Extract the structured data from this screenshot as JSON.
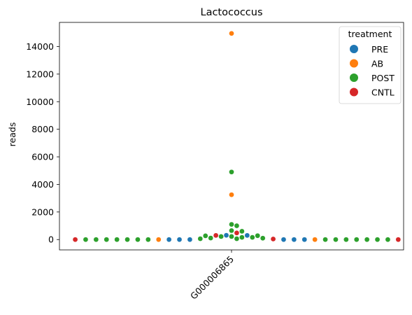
{
  "chart_data": {
    "type": "scatter",
    "title": "Lactococcus",
    "xlabel": "",
    "ylabel": "reads",
    "categories": [
      "G000006865"
    ],
    "ylim": [
      -750,
      15750
    ],
    "yticks": [
      0,
      2000,
      4000,
      6000,
      8000,
      10000,
      12000,
      14000
    ],
    "legend": {
      "title": "treatment",
      "placement": "top-right",
      "entries": [
        {
          "name": "PRE",
          "color": "#1f77b4"
        },
        {
          "name": "AB",
          "color": "#ff7f0e"
        },
        {
          "name": "POST",
          "color": "#2ca02c"
        },
        {
          "name": "CNTL",
          "color": "#d62728"
        }
      ]
    },
    "series": [
      {
        "name": "PRE",
        "color": "#1f77b4",
        "values": [
          0,
          0,
          0,
          0,
          0,
          300,
          0,
          310
        ]
      },
      {
        "name": "AB",
        "color": "#ff7f0e",
        "values": [
          14950,
          3250,
          0,
          0
        ]
      },
      {
        "name": "POST",
        "color": "#2ca02c",
        "values": [
          4900,
          1100,
          1000,
          600,
          650,
          280,
          220,
          160,
          110,
          60,
          0,
          0,
          0,
          0,
          0,
          0,
          0,
          0,
          0,
          0,
          0,
          0,
          0,
          0,
          60,
          100,
          160,
          220,
          270
        ]
      },
      {
        "name": "CNTL",
        "color": "#d62728",
        "values": [
          480,
          40,
          0,
          0,
          300
        ]
      }
    ]
  }
}
